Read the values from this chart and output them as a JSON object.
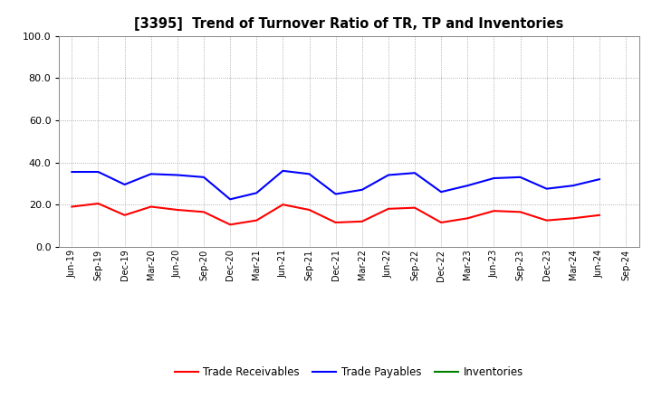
{
  "title": "[3395]  Trend of Turnover Ratio of TR, TP and Inventories",
  "xlabels": [
    "Jun-19",
    "Sep-19",
    "Dec-19",
    "Mar-20",
    "Jun-20",
    "Sep-20",
    "Dec-20",
    "Mar-21",
    "Jun-21",
    "Sep-21",
    "Dec-21",
    "Mar-22",
    "Jun-22",
    "Sep-22",
    "Dec-22",
    "Mar-23",
    "Jun-23",
    "Sep-23",
    "Dec-23",
    "Mar-24",
    "Jun-24",
    "Sep-24"
  ],
  "trade_receivables": [
    19.0,
    20.5,
    15.0,
    19.0,
    17.5,
    16.5,
    10.5,
    12.5,
    20.0,
    17.5,
    11.5,
    12.0,
    18.0,
    18.5,
    11.5,
    13.5,
    17.0,
    16.5,
    12.5,
    13.5,
    15.0,
    null
  ],
  "trade_payables": [
    35.5,
    35.5,
    29.5,
    34.5,
    34.0,
    33.0,
    22.5,
    25.5,
    36.0,
    34.5,
    25.0,
    27.0,
    34.0,
    35.0,
    26.0,
    29.0,
    32.5,
    33.0,
    27.5,
    29.0,
    32.0,
    null
  ],
  "inventories": [],
  "ylim": [
    0.0,
    100.0
  ],
  "yticks": [
    0.0,
    20.0,
    40.0,
    60.0,
    80.0,
    100.0
  ],
  "colors": {
    "trade_receivables": "#FF0000",
    "trade_payables": "#0000FF",
    "inventories": "#008000"
  },
  "line_width": 1.5,
  "background_color": "#FFFFFF",
  "grid_color": "#999999",
  "legend_entries": [
    "Trade Receivables",
    "Trade Payables",
    "Inventories"
  ]
}
